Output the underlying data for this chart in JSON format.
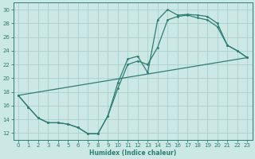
{
  "xlabel": "Humidex (Indice chaleur)",
  "xlim": [
    -0.5,
    23.5
  ],
  "ylim": [
    11,
    31
  ],
  "yticks": [
    12,
    14,
    16,
    18,
    20,
    22,
    24,
    26,
    28,
    30
  ],
  "xticks": [
    0,
    1,
    2,
    3,
    4,
    5,
    6,
    7,
    8,
    9,
    10,
    11,
    12,
    13,
    14,
    15,
    16,
    17,
    18,
    19,
    20,
    21,
    22,
    23
  ],
  "bg_color": "#cce8e5",
  "grid_color": "#aacfcc",
  "line_color": "#2d7d72",
  "line1_x": [
    0,
    1,
    2,
    3,
    4,
    5,
    6,
    7,
    8,
    9,
    10,
    11,
    12,
    13,
    14,
    15,
    16,
    17,
    18,
    19,
    20,
    21,
    22,
    23
  ],
  "line1_y": [
    17.5,
    15.8,
    14.2,
    13.5,
    13.5,
    13.3,
    12.8,
    11.9,
    11.9,
    14.5,
    19.3,
    22.8,
    23.2,
    20.8,
    28.5,
    30.0,
    29.2,
    29.3,
    29.2,
    29.0,
    28.0,
    24.8,
    24.0,
    23.0
  ],
  "line2_x": [
    0,
    1,
    2,
    3,
    4,
    5,
    6,
    7,
    8,
    9,
    10,
    11,
    12,
    13,
    14,
    15,
    16,
    17,
    18,
    19,
    20,
    21,
    22,
    23
  ],
  "line2_y": [
    17.5,
    15.8,
    14.2,
    13.5,
    13.5,
    13.3,
    12.8,
    11.9,
    11.9,
    14.5,
    18.5,
    22.0,
    22.5,
    22.0,
    24.5,
    28.5,
    29.0,
    29.2,
    28.8,
    28.5,
    27.5,
    24.8,
    24.0,
    23.0
  ],
  "line3_x": [
    0,
    23
  ],
  "line3_y": [
    17.5,
    23.0
  ]
}
